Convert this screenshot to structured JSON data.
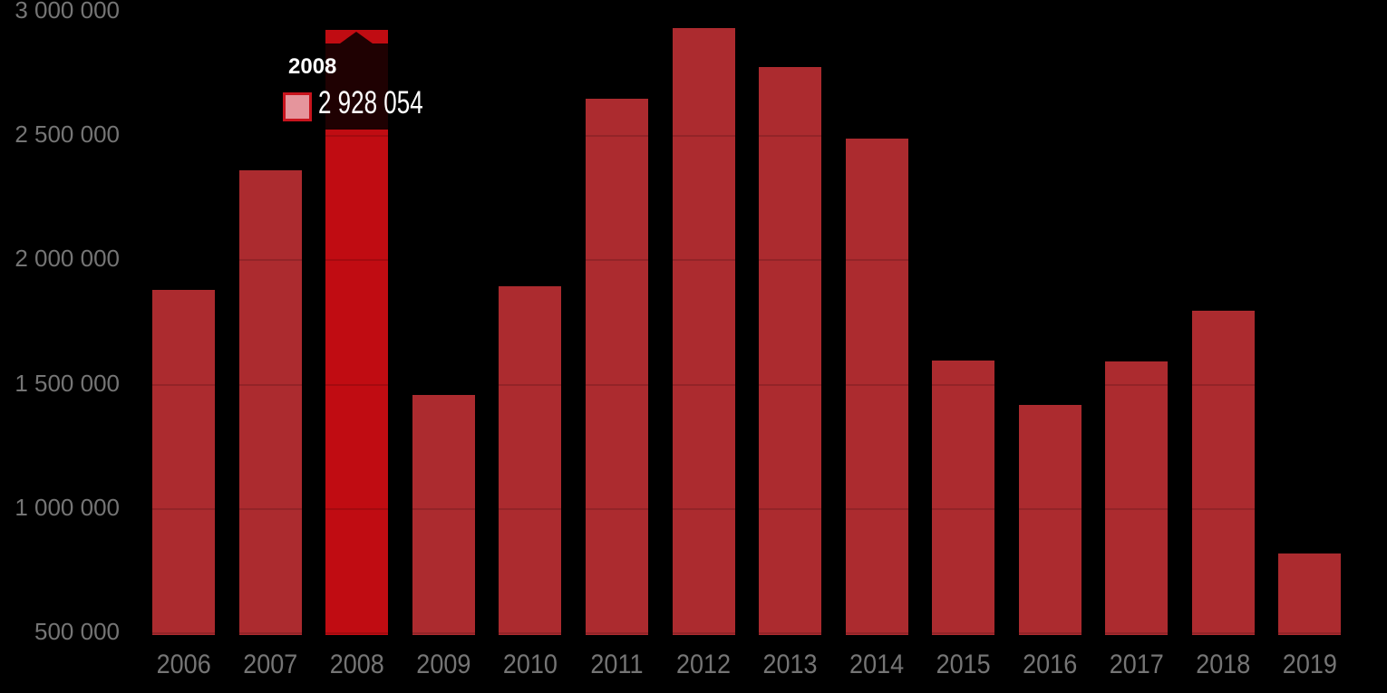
{
  "chart_data": {
    "type": "bar",
    "title": "",
    "xlabel": "",
    "ylabel": "",
    "categories": [
      "2006",
      "2007",
      "2008",
      "2009",
      "2010",
      "2011",
      "2012",
      "2013",
      "2014",
      "2015",
      "2016",
      "2017",
      "2018",
      "2019"
    ],
    "values": [
      1880000,
      2363000,
      2928054,
      1460000,
      1897000,
      2649000,
      2936000,
      2778000,
      2489000,
      1598000,
      1417000,
      1592000,
      1796000,
      821000
    ],
    "highlighted_index": 2,
    "highlighted_point": {
      "category": "2008",
      "value": 2928054
    },
    "y_axis": {
      "min": 500000,
      "max": 3000000,
      "tick_interval": 500000,
      "tick_labels": [
        "500 000",
        "1 000 000",
        "1 500 000",
        "2 000 000",
        "2 500 000",
        "3 000 000"
      ]
    },
    "grid": true,
    "legend": false
  },
  "tooltip": {
    "title": "2008",
    "value": "2 928 054"
  },
  "colors": {
    "background": "#000000",
    "bar": "#AC2B2F",
    "bar_highlight": "#C00C12",
    "grid_overlay": "rgba(0,0,0,0.14)",
    "axis_label": "#757575",
    "tooltip_background": "rgba(0,0,0,0.84)",
    "tooltip_text": "#FFFFFF",
    "marker_fill": "#E5959C",
    "marker_border": "#C8141D"
  }
}
